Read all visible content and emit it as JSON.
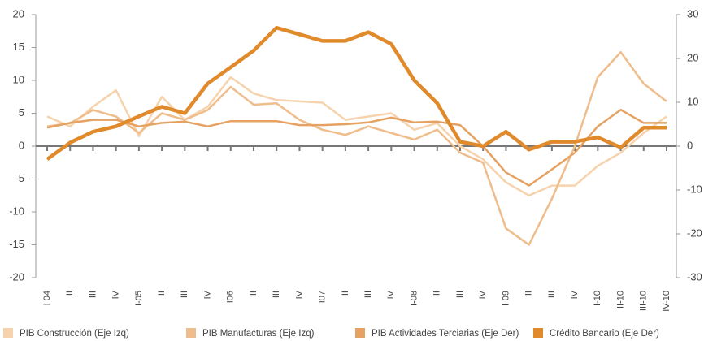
{
  "chart_data": {
    "type": "line",
    "categories": [
      "I 04",
      "II",
      "III",
      "IV",
      "I-05",
      "II",
      "III",
      "IV",
      "I06",
      "II",
      "III",
      "IV",
      "I07",
      "II",
      "III",
      "IV",
      "I-08",
      "II",
      "III",
      "IV",
      "I-09",
      "II",
      "III",
      "IV",
      "I-10",
      "II-10",
      "III-10",
      "IV-10"
    ],
    "series": [
      {
        "name": "PIB Construcción (Eje Izq)",
        "color": "#f6d3ad",
        "axis": "y",
        "values": [
          4.5,
          3,
          6,
          8.5,
          1.5,
          7.5,
          4,
          6,
          10.5,
          8,
          7,
          6.8,
          6.6,
          4,
          4.5,
          5,
          2.5,
          3.5,
          0,
          -2,
          -5.5,
          -7.5,
          -6,
          -6,
          -3,
          -1,
          2,
          4.5
        ]
      },
      {
        "name": "PIB Manufacturas (Eje Izq)",
        "color": "#efbd8b",
        "axis": "y",
        "values": [
          3,
          3.5,
          5.5,
          4.5,
          2,
          5,
          4,
          5.5,
          9,
          6.3,
          6.5,
          4,
          2.5,
          1.7,
          3,
          2,
          1,
          2.5,
          -1,
          -2.5,
          -12.5,
          -15,
          -8,
          0,
          10.5,
          14.3,
          9.5,
          6.8
        ]
      },
      {
        "name": "PIB Actividades Terciarias (Eje Der)",
        "color": "#e6a262",
        "axis": "y2",
        "values": [
          4.2,
          5.3,
          6,
          6,
          4.5,
          5.3,
          5.6,
          4.5,
          5.7,
          5.7,
          5.7,
          4.8,
          4.8,
          5,
          5.4,
          6.5,
          5.4,
          5.6,
          4.8,
          0,
          -6,
          -9,
          -5.3,
          -1.5,
          4.5,
          8.3,
          5.3,
          5.3
        ]
      },
      {
        "name": "Crédito Bancario (Eje Der)",
        "color": "#e08a2c",
        "axis": "y2",
        "values": [
          -3,
          0.8,
          3.3,
          4.5,
          6.8,
          9,
          7.5,
          14.3,
          18,
          21.8,
          27,
          25.5,
          24,
          24,
          26,
          23.3,
          15,
          9.8,
          1,
          0,
          3.3,
          -0.8,
          1,
          1,
          2,
          -0.3,
          4.2,
          4.2
        ]
      }
    ],
    "ylim": [
      -20,
      20
    ],
    "yticks": [
      -20,
      -15,
      -10,
      -5,
      0,
      5,
      10,
      15,
      20
    ],
    "y2lim": [
      -30,
      30
    ],
    "y2ticks": [
      -30,
      -20,
      -10,
      0,
      10,
      20,
      30
    ],
    "legend": "bottom"
  }
}
